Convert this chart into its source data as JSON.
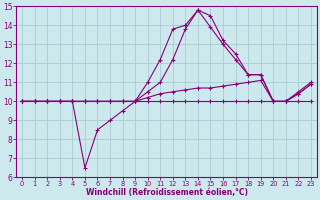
{
  "xlabel": "Windchill (Refroidissement éolien,°C)",
  "xlim": [
    -0.5,
    23.5
  ],
  "ylim": [
    6,
    15
  ],
  "xticks": [
    0,
    1,
    2,
    3,
    4,
    5,
    6,
    7,
    8,
    9,
    10,
    11,
    12,
    13,
    14,
    15,
    16,
    17,
    18,
    19,
    20,
    21,
    22,
    23
  ],
  "yticks": [
    6,
    7,
    8,
    9,
    10,
    11,
    12,
    13,
    14,
    15
  ],
  "bg_color": "#cde9ed",
  "grid_color": "#a8cdd4",
  "line_color": "#880077",
  "curves": [
    {
      "x": [
        0,
        1,
        2,
        3,
        4,
        5,
        6,
        7,
        8,
        9,
        10,
        11,
        12,
        13,
        14,
        15,
        16,
        17,
        18,
        19,
        20,
        21,
        22,
        23
      ],
      "y": [
        10,
        10,
        10,
        10,
        10,
        10,
        10,
        10,
        10,
        10,
        10,
        10,
        10,
        10,
        10,
        10,
        10,
        10,
        10,
        10,
        10,
        10,
        10,
        10
      ]
    },
    {
      "x": [
        0,
        1,
        2,
        3,
        4,
        5,
        6,
        7,
        8,
        9,
        10,
        11,
        12,
        13,
        14,
        15,
        16,
        17,
        18,
        19,
        20,
        21,
        22,
        23
      ],
      "y": [
        10,
        10,
        10,
        10,
        10,
        10,
        10,
        10,
        10,
        10,
        10.2,
        10.4,
        10.5,
        10.6,
        10.7,
        10.7,
        10.8,
        10.9,
        11.0,
        11.1,
        10.0,
        10.0,
        10.5,
        11.0
      ]
    },
    {
      "x": [
        0,
        1,
        2,
        3,
        4,
        5,
        6,
        7,
        8,
        9,
        10,
        11,
        12,
        13,
        14,
        15,
        16,
        17,
        18,
        19,
        20,
        21,
        22,
        23
      ],
      "y": [
        10,
        10,
        10,
        10,
        10,
        6.5,
        8.5,
        9.0,
        9.5,
        10,
        11,
        12.2,
        13.8,
        14.0,
        14.8,
        13.9,
        13.0,
        12.2,
        11.4,
        11.4,
        10,
        10,
        10.4,
        10.9
      ]
    },
    {
      "x": [
        0,
        1,
        2,
        3,
        4,
        5,
        6,
        7,
        8,
        9,
        10,
        11,
        12,
        13,
        14,
        15,
        16,
        17,
        18,
        19,
        20,
        21,
        22,
        23
      ],
      "y": [
        10,
        10,
        10,
        10,
        10,
        10,
        10,
        10,
        10,
        10,
        10.5,
        11,
        12.2,
        13.8,
        14.8,
        14.5,
        13.2,
        12.5,
        11.4,
        11.4,
        10,
        10,
        10.4,
        10.9
      ]
    }
  ]
}
